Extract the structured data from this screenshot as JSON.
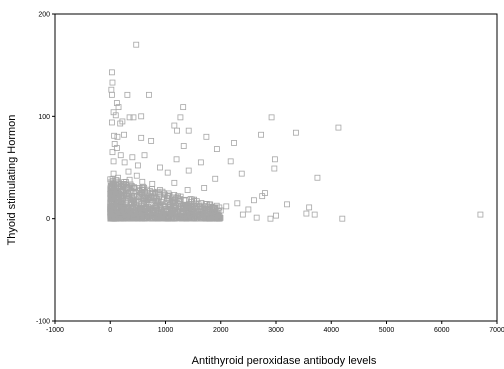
{
  "chart_data": {
    "type": "scatter",
    "xlabel": "Antithyroid peroxidase antibody levels",
    "ylabel": "Thyoid stimulating Hormon",
    "xlim": [
      -1000,
      7000
    ],
    "ylim": [
      -100,
      200
    ],
    "x_ticks": [
      -1000,
      0,
      1000,
      2000,
      3000,
      4000,
      5000,
      6000,
      7000
    ],
    "y_ticks": [
      -100,
      0,
      100,
      200
    ],
    "grid": false,
    "legend": "none",
    "marker": "open-square",
    "marker_color": "#a6a6a6",
    "points": [
      {
        "x": 470,
        "y": 170
      },
      {
        "x": 30,
        "y": 143
      },
      {
        "x": 40,
        "y": 133
      },
      {
        "x": 20,
        "y": 126
      },
      {
        "x": 30,
        "y": 121
      },
      {
        "x": 310,
        "y": 121
      },
      {
        "x": 700,
        "y": 121
      },
      {
        "x": 120,
        "y": 113
      },
      {
        "x": 150,
        "y": 109
      },
      {
        "x": 1320,
        "y": 109
      },
      {
        "x": 60,
        "y": 104
      },
      {
        "x": 100,
        "y": 101
      },
      {
        "x": 350,
        "y": 99
      },
      {
        "x": 420,
        "y": 99
      },
      {
        "x": 560,
        "y": 100
      },
      {
        "x": 1270,
        "y": 99
      },
      {
        "x": 2920,
        "y": 99
      },
      {
        "x": 30,
        "y": 94
      },
      {
        "x": 180,
        "y": 93
      },
      {
        "x": 220,
        "y": 95
      },
      {
        "x": 1160,
        "y": 91
      },
      {
        "x": 4130,
        "y": 89
      },
      {
        "x": 1210,
        "y": 86
      },
      {
        "x": 1420,
        "y": 86
      },
      {
        "x": 3360,
        "y": 84
      },
      {
        "x": 2730,
        "y": 82
      },
      {
        "x": 70,
        "y": 81
      },
      {
        "x": 130,
        "y": 80
      },
      {
        "x": 250,
        "y": 82
      },
      {
        "x": 1740,
        "y": 80
      },
      {
        "x": 560,
        "y": 79
      },
      {
        "x": 740,
        "y": 76
      },
      {
        "x": 2240,
        "y": 74
      },
      {
        "x": 80,
        "y": 73
      },
      {
        "x": 120,
        "y": 69
      },
      {
        "x": 1330,
        "y": 71
      },
      {
        "x": 1930,
        "y": 68
      },
      {
        "x": 40,
        "y": 65
      },
      {
        "x": 190,
        "y": 62
      },
      {
        "x": 400,
        "y": 60
      },
      {
        "x": 620,
        "y": 62
      },
      {
        "x": 1200,
        "y": 58
      },
      {
        "x": 2980,
        "y": 58
      },
      {
        "x": 2180,
        "y": 56
      },
      {
        "x": 1640,
        "y": 55
      },
      {
        "x": 60,
        "y": 56
      },
      {
        "x": 260,
        "y": 55
      },
      {
        "x": 500,
        "y": 52
      },
      {
        "x": 900,
        "y": 50
      },
      {
        "x": 2970,
        "y": 49
      },
      {
        "x": 1420,
        "y": 47
      },
      {
        "x": 1040,
        "y": 45
      },
      {
        "x": 2380,
        "y": 44
      },
      {
        "x": 3750,
        "y": 40
      },
      {
        "x": 1900,
        "y": 39
      },
      {
        "x": 1160,
        "y": 35
      },
      {
        "x": 1700,
        "y": 30
      },
      {
        "x": 1400,
        "y": 28
      },
      {
        "x": 2800,
        "y": 25
      },
      {
        "x": 2750,
        "y": 22
      },
      {
        "x": 2600,
        "y": 18
      },
      {
        "x": 2300,
        "y": 15
      },
      {
        "x": 3200,
        "y": 14
      },
      {
        "x": 2100,
        "y": 12
      },
      {
        "x": 3600,
        "y": 11
      },
      {
        "x": 2500,
        "y": 9
      },
      {
        "x": 2000,
        "y": 8
      },
      {
        "x": 1850,
        "y": 5
      },
      {
        "x": 2400,
        "y": 4
      },
      {
        "x": 3000,
        "y": 3
      },
      {
        "x": 3550,
        "y": 5
      },
      {
        "x": 3700,
        "y": 4
      },
      {
        "x": 4200,
        "y": 0
      },
      {
        "x": 2650,
        "y": 1
      },
      {
        "x": 2900,
        "y": 0
      },
      {
        "x": 6700,
        "y": 4
      }
    ],
    "dense_cluster": {
      "x_range": [
        0,
        2000
      ],
      "y_range": [
        0,
        40
      ],
      "note_points": [
        {
          "x": 40,
          "y": 2
        },
        {
          "x": 90,
          "y": 6
        },
        {
          "x": 150,
          "y": 3
        },
        {
          "x": 220,
          "y": 10
        },
        {
          "x": 300,
          "y": 4
        },
        {
          "x": 380,
          "y": 14
        },
        {
          "x": 450,
          "y": 2
        },
        {
          "x": 520,
          "y": 8
        },
        {
          "x": 600,
          "y": 5
        },
        {
          "x": 680,
          "y": 18
        },
        {
          "x": 760,
          "y": 3
        },
        {
          "x": 840,
          "y": 9
        },
        {
          "x": 920,
          "y": 6
        },
        {
          "x": 1000,
          "y": 12
        },
        {
          "x": 1100,
          "y": 4
        },
        {
          "x": 1200,
          "y": 8
        },
        {
          "x": 1300,
          "y": 2
        },
        {
          "x": 1400,
          "y": 10
        },
        {
          "x": 1500,
          "y": 5
        },
        {
          "x": 1600,
          "y": 3
        },
        {
          "x": 30,
          "y": 20
        },
        {
          "x": 110,
          "y": 26
        },
        {
          "x": 200,
          "y": 32
        },
        {
          "x": 280,
          "y": 24
        },
        {
          "x": 350,
          "y": 38
        },
        {
          "x": 440,
          "y": 22
        },
        {
          "x": 530,
          "y": 30
        },
        {
          "x": 620,
          "y": 26
        },
        {
          "x": 710,
          "y": 20
        },
        {
          "x": 800,
          "y": 16
        },
        {
          "x": 60,
          "y": 44
        },
        {
          "x": 140,
          "y": 40
        },
        {
          "x": 330,
          "y": 46
        },
        {
          "x": 480,
          "y": 42
        },
        {
          "x": 580,
          "y": 36
        },
        {
          "x": 760,
          "y": 34
        },
        {
          "x": 900,
          "y": 28
        },
        {
          "x": 1050,
          "y": 22
        },
        {
          "x": 1250,
          "y": 18
        },
        {
          "x": 1450,
          "y": 14
        }
      ]
    }
  }
}
